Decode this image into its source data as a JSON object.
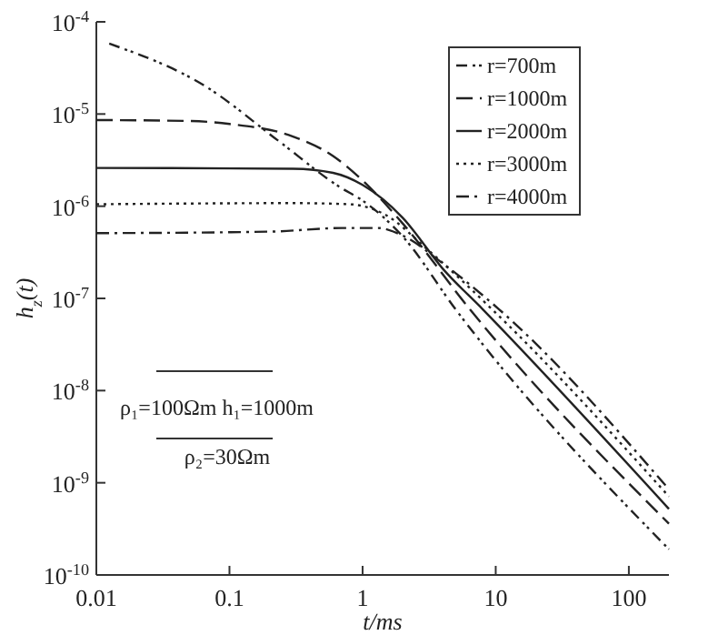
{
  "chart_data": {
    "type": "line",
    "xlabel": "t/ms",
    "ylabel": "h$_{z}$(t)",
    "log": "xy",
    "grid": false,
    "legend": "top right",
    "marker": "none",
    "xlim": [
      0.01,
      200
    ],
    "ylim": [
      1e-10,
      0.0001
    ],
    "xticks": [
      0.01,
      0.1,
      1,
      10,
      100
    ],
    "yticks": [
      {
        "value": 1e-10,
        "label": "10$^{-10}$"
      },
      {
        "value": 1e-09,
        "label": "10$^{-9}$"
      },
      {
        "value": 1e-08,
        "label": "10$^{-8}$"
      },
      {
        "value": 1e-07,
        "label": "10$^{-7}$"
      },
      {
        "value": 1e-06,
        "label": "10$^{-6}$"
      },
      {
        "value": 1e-05,
        "label": "10$^{-5}$"
      },
      {
        "value": 0.0001,
        "label": "10$^{-4}$"
      }
    ],
    "annotations": [
      "ρ₁=100Ωm  h₁=1000m",
      "ρ₂=30Ωm"
    ],
    "series": [
      {
        "name": "r=700m",
        "color": "#222222",
        "line_style": "dashdotdot",
        "x": [
          0.0125,
          0.066,
          0.23,
          0.68,
          1,
          2,
          5,
          200
        ],
        "values": [
          5.8e-05,
          2e-05,
          5.2e-06,
          1.6e-06,
          1.15e-06,
          4.7e-07,
          7.6e-08,
          1.9e-10
        ]
      },
      {
        "name": "r=1000m",
        "color": "#222222",
        "line_style": "dashed",
        "x": [
          0.01,
          0.05,
          0.1,
          0.3,
          0.6,
          1,
          2,
          6.4,
          200
        ],
        "values": [
          8.6e-06,
          8.4e-06,
          7.8e-06,
          5.7e-06,
          3.5e-06,
          1.9e-06,
          6.5e-07,
          7.6e-08,
          3.6e-10
        ]
      },
      {
        "name": "r=2000m",
        "color": "#222222",
        "line_style": "solid",
        "x": [
          0.01,
          0.3,
          0.6,
          1,
          2,
          4,
          8,
          200
        ],
        "values": [
          2.6e-06,
          2.55e-06,
          2.3e-06,
          1.7e-06,
          7.5e-07,
          2.1e-07,
          7.6e-08,
          5.2e-10
        ]
      },
      {
        "name": "r=3000m",
        "color": "#222222",
        "line_style": "dotted",
        "x": [
          0.01,
          0.3,
          0.8,
          1.5,
          3,
          9.4,
          200
        ],
        "values": [
          1.05e-06,
          1.08e-06,
          1.05e-06,
          8e-07,
          3.5e-07,
          7.6e-08,
          7.1e-10
        ]
      },
      {
        "name": "r=4000m",
        "color": "#222222",
        "line_style": "dashdot",
        "x": [
          0.01,
          0.2,
          0.7,
          1.3,
          2,
          4,
          10.6,
          200
        ],
        "values": [
          5.1e-07,
          5.3e-07,
          5.8e-07,
          5.8e-07,
          4.8e-07,
          2.4e-07,
          7.6e-08,
          8.5e-10
        ]
      }
    ]
  }
}
